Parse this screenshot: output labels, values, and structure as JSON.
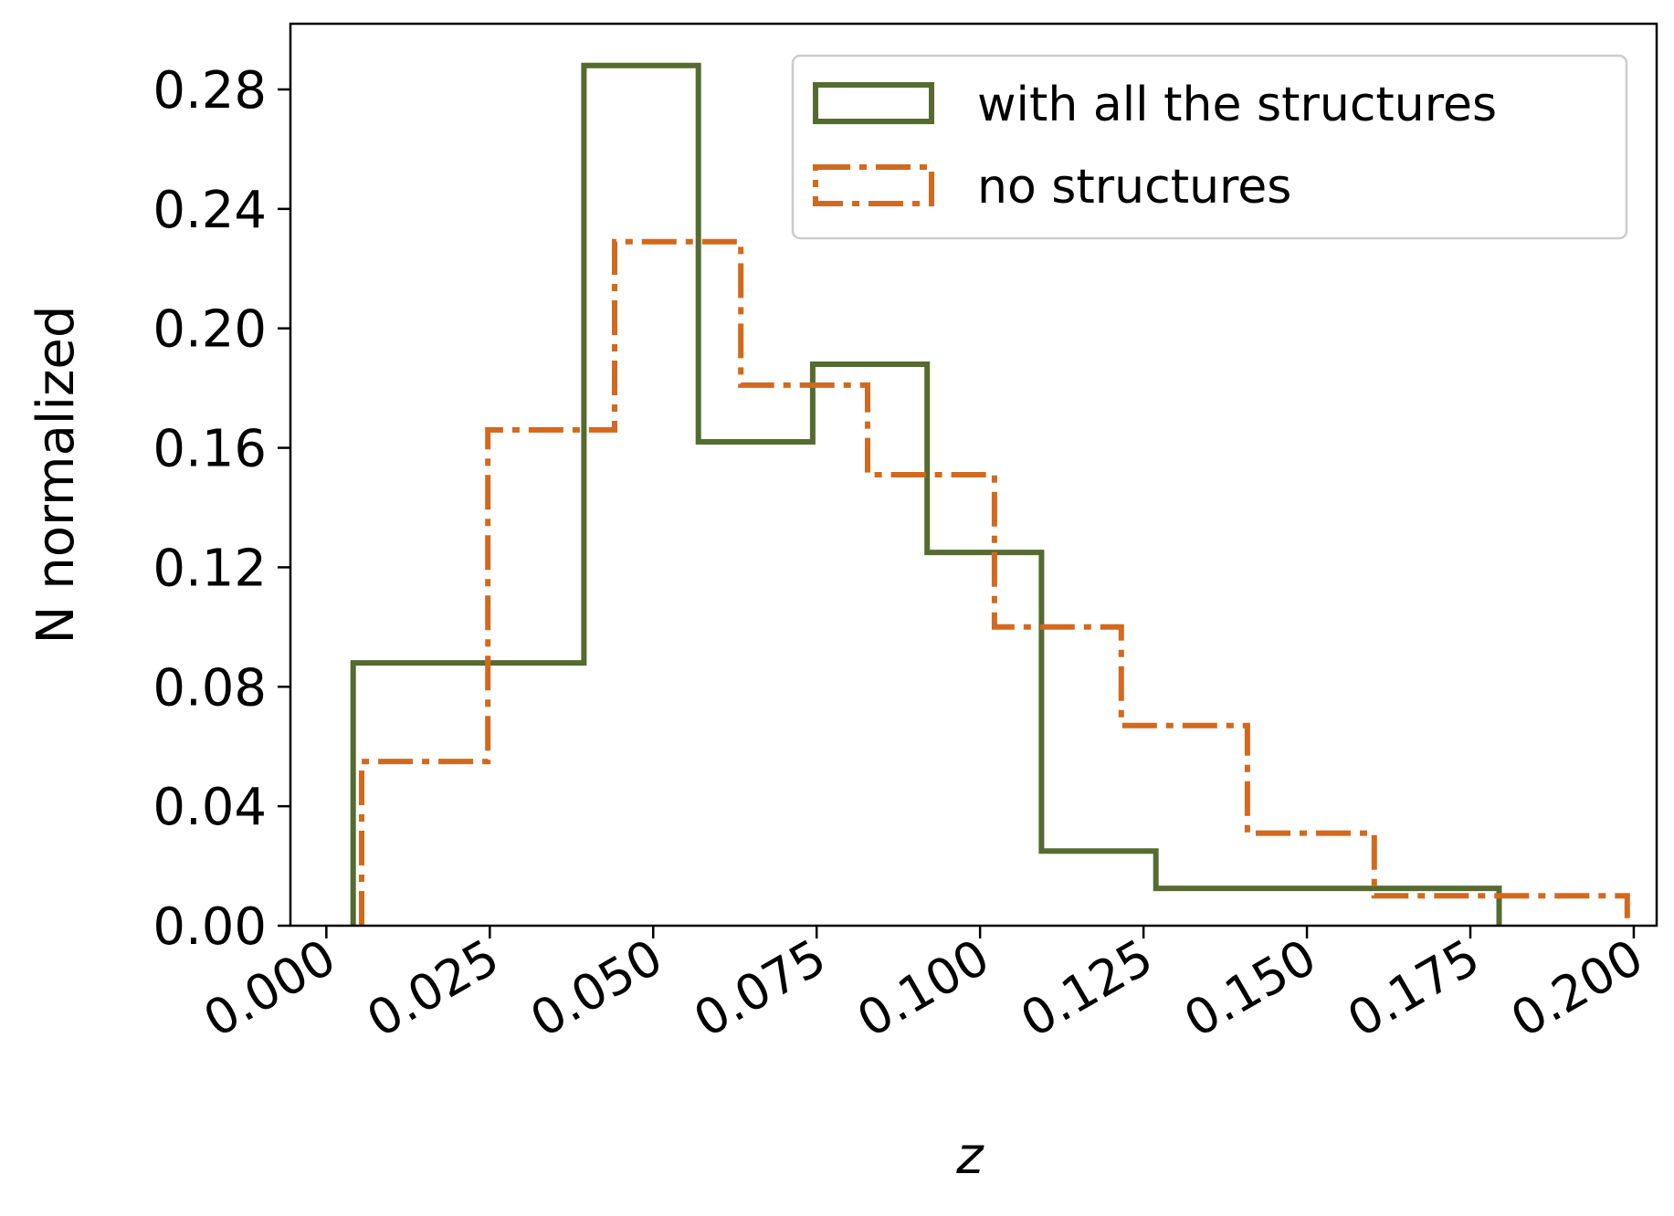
{
  "chart_data": {
    "type": "step-histogram",
    "xlabel": "z",
    "ylabel": "N normalized",
    "xlim": [
      -0.0055,
      0.2035
    ],
    "ylim": [
      0,
      0.302
    ],
    "xticks": [
      "0.000",
      "0.025",
      "0.050",
      "0.075",
      "0.100",
      "0.125",
      "0.150",
      "0.175",
      "0.200"
    ],
    "xtick_values": [
      0,
      0.025,
      0.05,
      0.075,
      0.1,
      0.125,
      0.15,
      0.175,
      0.2
    ],
    "yticks": [
      "0.00",
      "0.04",
      "0.08",
      "0.12",
      "0.16",
      "0.20",
      "0.24",
      "0.28"
    ],
    "ytick_values": [
      0,
      0.04,
      0.08,
      0.12,
      0.16,
      0.2,
      0.24,
      0.28
    ],
    "legend_position": "top-right",
    "series": [
      {
        "name": "with all the structures",
        "color": "#556b2f",
        "linestyle": "solid",
        "bin_edges": [
          0.0041,
          0.0394,
          0.0569,
          0.0744,
          0.0919,
          0.1094,
          0.1269,
          0.1444,
          0.1619,
          0.1794
        ],
        "values": [
          0.088,
          0.288,
          0.162,
          0.188,
          0.125,
          0.025,
          0.0125,
          0.0125,
          0.0125
        ]
      },
      {
        "name": "no structures",
        "color": "#d2691e",
        "linestyle": "dashdot",
        "bin_edges": [
          0.0054,
          0.0247,
          0.0441,
          0.0634,
          0.0828,
          0.1022,
          0.1216,
          0.1409,
          0.1603,
          0.1796,
          0.199
        ],
        "values": [
          0.055,
          0.166,
          0.229,
          0.181,
          0.151,
          0.1,
          0.067,
          0.031,
          0.01,
          0.01
        ]
      }
    ]
  }
}
